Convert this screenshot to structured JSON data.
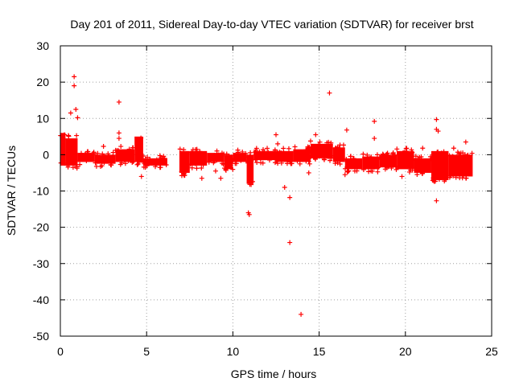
{
  "chart_data": {
    "type": "scatter",
    "title": "Day 201 of 2011, Sidereal Day-to-day VTEC variation (SDTVAR) for receiver brst",
    "xlabel": "GPS time / hours",
    "ylabel": "SDTVAR / TECUs",
    "xlim": [
      0,
      25
    ],
    "ylim": [
      -50,
      30
    ],
    "xticks": [
      "0",
      "5",
      "10",
      "15",
      "20",
      "25"
    ],
    "yticks": [
      "30",
      "20",
      "10",
      "0",
      "-10",
      "-20",
      "-30",
      "-40",
      "-50"
    ],
    "grid": true,
    "marker": "+",
    "marker_color": "#ff0000",
    "band_segments": [
      {
        "x0": 0.0,
        "x1": 0.3,
        "ylow": -3,
        "yhigh": 6
      },
      {
        "x0": 0.3,
        "x1": 1.0,
        "ylow": -3,
        "yhigh": 4.5
      },
      {
        "x0": 1.0,
        "x1": 2.0,
        "ylow": -2,
        "yhigh": 0.5
      },
      {
        "x0": 2.0,
        "x1": 3.2,
        "ylow": -2.5,
        "yhigh": 0
      },
      {
        "x0": 3.2,
        "x1": 4.3,
        "ylow": -2,
        "yhigh": 1.5
      },
      {
        "x0": 4.3,
        "x1": 4.8,
        "ylow": -2,
        "yhigh": 5
      },
      {
        "x0": 4.8,
        "x1": 6.2,
        "ylow": -3,
        "yhigh": -1
      },
      {
        "x0": 6.9,
        "x1": 7.5,
        "ylow": -5,
        "yhigh": 1
      },
      {
        "x0": 7.5,
        "x1": 8.5,
        "ylow": -3,
        "yhigh": 1
      },
      {
        "x0": 8.5,
        "x1": 9.5,
        "ylow": -2,
        "yhigh": 0.5
      },
      {
        "x0": 9.5,
        "x1": 10.0,
        "ylow": -4,
        "yhigh": 0
      },
      {
        "x0": 10.0,
        "x1": 10.8,
        "ylow": -2,
        "yhigh": 0.5
      },
      {
        "x0": 10.8,
        "x1": 11.2,
        "ylow": -8,
        "yhigh": 0
      },
      {
        "x0": 11.2,
        "x1": 12.5,
        "ylow": -1.5,
        "yhigh": 1
      },
      {
        "x0": 12.5,
        "x1": 13.5,
        "ylow": -2,
        "yhigh": 1
      },
      {
        "x0": 13.5,
        "x1": 14.5,
        "ylow": -2,
        "yhigh": 1.5
      },
      {
        "x0": 14.5,
        "x1": 15.8,
        "ylow": -1,
        "yhigh": 3
      },
      {
        "x0": 15.8,
        "x1": 16.5,
        "ylow": -2,
        "yhigh": 2
      },
      {
        "x0": 16.5,
        "x1": 17.5,
        "ylow": -4,
        "yhigh": -1
      },
      {
        "x0": 17.5,
        "x1": 18.5,
        "ylow": -4,
        "yhigh": -0.5
      },
      {
        "x0": 18.5,
        "x1": 19.5,
        "ylow": -3.5,
        "yhigh": 0
      },
      {
        "x0": 19.5,
        "x1": 20.5,
        "ylow": -4,
        "yhigh": 1
      },
      {
        "x0": 20.5,
        "x1": 21.5,
        "ylow": -5,
        "yhigh": -1
      },
      {
        "x0": 21.5,
        "x1": 22.5,
        "ylow": -7,
        "yhigh": 1
      },
      {
        "x0": 22.5,
        "x1": 23.9,
        "ylow": -6,
        "yhigh": 0
      }
    ],
    "outliers": [
      {
        "x": 0.8,
        "y": 21.5
      },
      {
        "x": 0.8,
        "y": 19
      },
      {
        "x": 0.9,
        "y": 12.5
      },
      {
        "x": 0.6,
        "y": 11.5
      },
      {
        "x": 1.0,
        "y": 10.2
      },
      {
        "x": 3.4,
        "y": 14.5
      },
      {
        "x": 3.4,
        "y": 6
      },
      {
        "x": 3.4,
        "y": 4.5
      },
      {
        "x": 4.7,
        "y": -6
      },
      {
        "x": 2.5,
        "y": 2.3
      },
      {
        "x": 8.2,
        "y": -6.5
      },
      {
        "x": 9.0,
        "y": -4.5
      },
      {
        "x": 9.3,
        "y": -6.5
      },
      {
        "x": 10.9,
        "y": -16
      },
      {
        "x": 10.95,
        "y": -16.5
      },
      {
        "x": 12.5,
        "y": 5.5
      },
      {
        "x": 12.6,
        "y": 3
      },
      {
        "x": 13.0,
        "y": -9
      },
      {
        "x": 13.3,
        "y": -11.8
      },
      {
        "x": 13.3,
        "y": -24.2
      },
      {
        "x": 13.95,
        "y": -44
      },
      {
        "x": 15.6,
        "y": 17
      },
      {
        "x": 14.8,
        "y": 5.5
      },
      {
        "x": 16.6,
        "y": 6.8
      },
      {
        "x": 18.2,
        "y": 9.2
      },
      {
        "x": 18.2,
        "y": 4.5
      },
      {
        "x": 16.5,
        "y": -5.5
      },
      {
        "x": 19.8,
        "y": -6
      },
      {
        "x": 21.8,
        "y": 9.7
      },
      {
        "x": 21.8,
        "y": 7
      },
      {
        "x": 21.9,
        "y": 6.5
      },
      {
        "x": 21.8,
        "y": -12.7
      },
      {
        "x": 23.5,
        "y": 3.5
      },
      {
        "x": 22.8,
        "y": 1.8
      },
      {
        "x": 21.0,
        "y": 1.8
      },
      {
        "x": 14.4,
        "y": -5
      }
    ]
  }
}
